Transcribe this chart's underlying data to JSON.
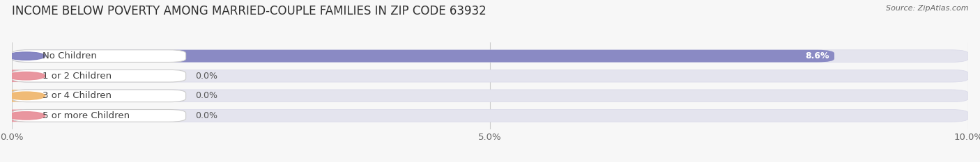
{
  "title": "INCOME BELOW POVERTY AMONG MARRIED-COUPLE FAMILIES IN ZIP CODE 63932",
  "source": "Source: ZipAtlas.com",
  "categories": [
    "No Children",
    "1 or 2 Children",
    "3 or 4 Children",
    "5 or more Children"
  ],
  "values": [
    8.6,
    0.0,
    0.0,
    0.0
  ],
  "bar_colors": [
    "#8080c0",
    "#e8909a",
    "#f0b870",
    "#e8909a"
  ],
  "bar_bg_color": "#e4e4ee",
  "xlim": [
    0,
    10.0
  ],
  "xticks": [
    0.0,
    5.0,
    10.0
  ],
  "xticklabels": [
    "0.0%",
    "5.0%",
    "10.0%"
  ],
  "background_color": "#f7f7f7",
  "title_fontsize": 12,
  "tick_fontsize": 9.5,
  "label_fontsize": 9.5,
  "value_fontsize": 9
}
